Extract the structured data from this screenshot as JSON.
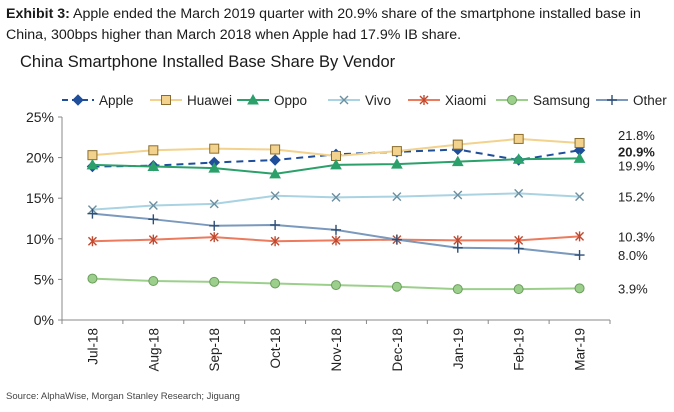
{
  "exhibit": {
    "label": "Exhibit 3:",
    "text": "Apple ended the March 2019 quarter with 20.9% share of the smartphone installed base in China, 300bps higher than March 2018 when Apple had 17.9% IB share."
  },
  "source": "Source: AlphaWise, Morgan Stanley Research; Jiguang",
  "chart_data": {
    "type": "line",
    "title": "China Smartphone Installed Base Share By Vendor",
    "xlabel": "",
    "ylabel": "",
    "ylim": [
      0,
      25
    ],
    "yticks": [
      "0%",
      "5%",
      "10%",
      "15%",
      "20%",
      "25%"
    ],
    "ytick_values": [
      0,
      5,
      10,
      15,
      20,
      25
    ],
    "categories": [
      "Jul-18",
      "Aug-18",
      "Sep-18",
      "Oct-18",
      "Nov-18",
      "Dec-18",
      "Jan-19",
      "Feb-19",
      "Mar-19"
    ],
    "legend_position": "top",
    "series": [
      {
        "name": "Apple",
        "color": "#1f4e9a",
        "marker": "diamond",
        "dashed": true,
        "values": [
          18.9,
          19.0,
          19.4,
          19.7,
          20.4,
          20.7,
          21.0,
          19.7,
          20.9
        ],
        "end_label": "20.9%"
      },
      {
        "name": "Huawei",
        "color": "#f2d28c",
        "marker": "square",
        "dashed": false,
        "values": [
          20.3,
          20.9,
          21.1,
          21.0,
          20.2,
          20.8,
          21.6,
          22.3,
          21.8
        ],
        "end_label": "21.8%"
      },
      {
        "name": "Oppo",
        "color": "#2ba06a",
        "marker": "triangle",
        "dashed": false,
        "values": [
          19.1,
          18.9,
          18.7,
          18.0,
          19.1,
          19.2,
          19.5,
          19.8,
          19.9
        ],
        "end_label": "19.9%"
      },
      {
        "name": "Vivo",
        "color": "#a9d3e2",
        "marker": "x",
        "dashed": false,
        "values": [
          13.6,
          14.1,
          14.3,
          15.3,
          15.1,
          15.2,
          15.4,
          15.6,
          15.2
        ],
        "end_label": "15.2%"
      },
      {
        "name": "Xiaomi",
        "color": "#ec7a5c",
        "marker": "star",
        "dashed": false,
        "values": [
          9.7,
          9.9,
          10.2,
          9.7,
          9.8,
          9.9,
          9.8,
          9.8,
          10.3
        ],
        "end_label": "10.3%"
      },
      {
        "name": "Samsung",
        "color": "#9ccf8c",
        "marker": "circle",
        "dashed": false,
        "values": [
          5.1,
          4.8,
          4.7,
          4.5,
          4.3,
          4.1,
          3.8,
          3.8,
          3.9
        ],
        "end_label": "3.9%"
      },
      {
        "name": "Other",
        "color": "#7a99bc",
        "marker": "plus",
        "dashed": false,
        "values": [
          13.1,
          12.4,
          11.6,
          11.7,
          11.1,
          9.9,
          8.9,
          8.8,
          8.0
        ],
        "end_label": "8.0%"
      }
    ]
  }
}
